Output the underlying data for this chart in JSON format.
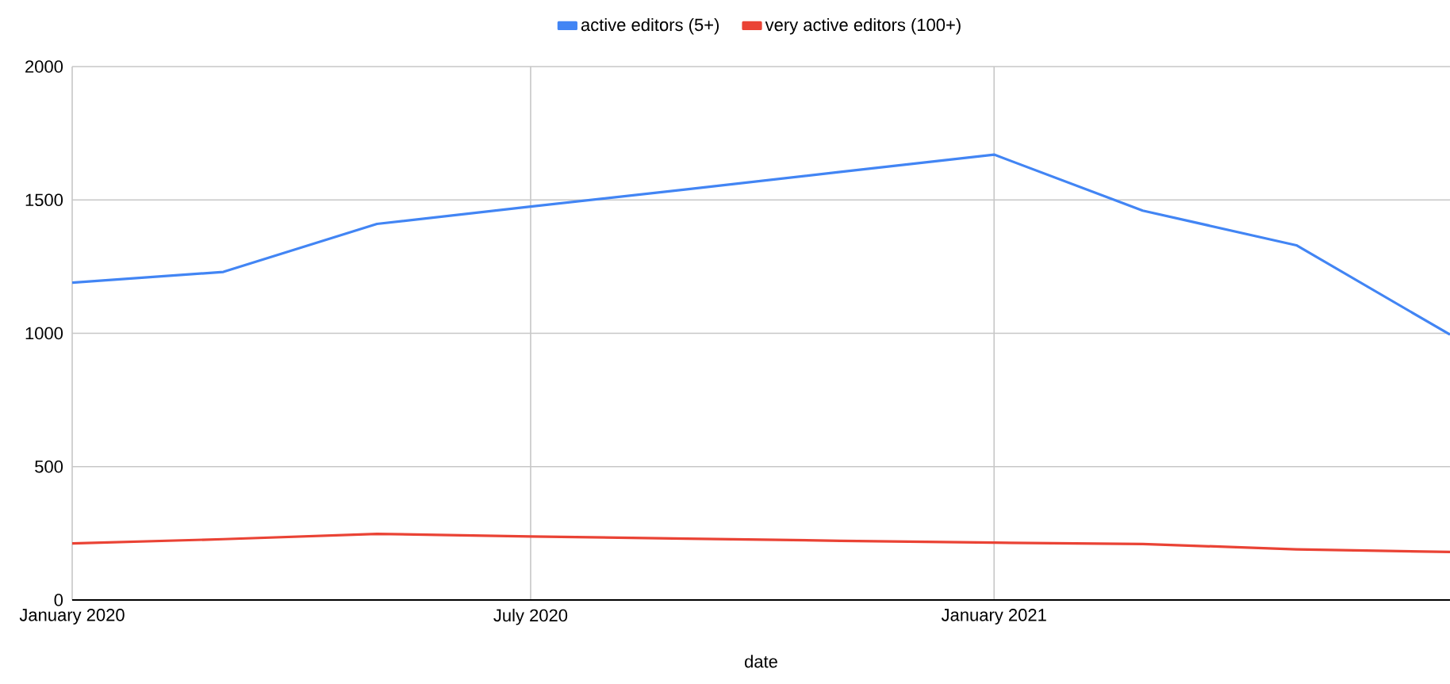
{
  "chart_data": {
    "type": "line",
    "xlabel": "date",
    "x": [
      "2020-01",
      "2020-03",
      "2020-05",
      "2020-07",
      "2020-09",
      "2020-11",
      "2021-01",
      "2021-03",
      "2021-05",
      "2021-07"
    ],
    "series": [
      {
        "name": "active editors (5+)",
        "color": "#4285f4",
        "values": [
          1190,
          1230,
          1410,
          1475,
          1540,
          1605,
          1670,
          1460,
          1330,
          995
        ]
      },
      {
        "name": "very active editors (100+)",
        "color": "#ea4335",
        "values": [
          212,
          228,
          248,
          238,
          230,
          222,
          215,
          210,
          190,
          180
        ]
      }
    ],
    "xlim": [
      "2020-01",
      "2021-07"
    ],
    "xticks": [
      {
        "value": "2020-01",
        "label": "January 2020"
      },
      {
        "value": "2020-07",
        "label": "July 2020"
      },
      {
        "value": "2021-01",
        "label": "January 2021"
      }
    ],
    "ylim": [
      0,
      2000
    ],
    "yticks": [
      0,
      500,
      1000,
      1500,
      2000
    ],
    "grid": true,
    "legend": "top",
    "marker": "none",
    "line_style": "solid"
  }
}
